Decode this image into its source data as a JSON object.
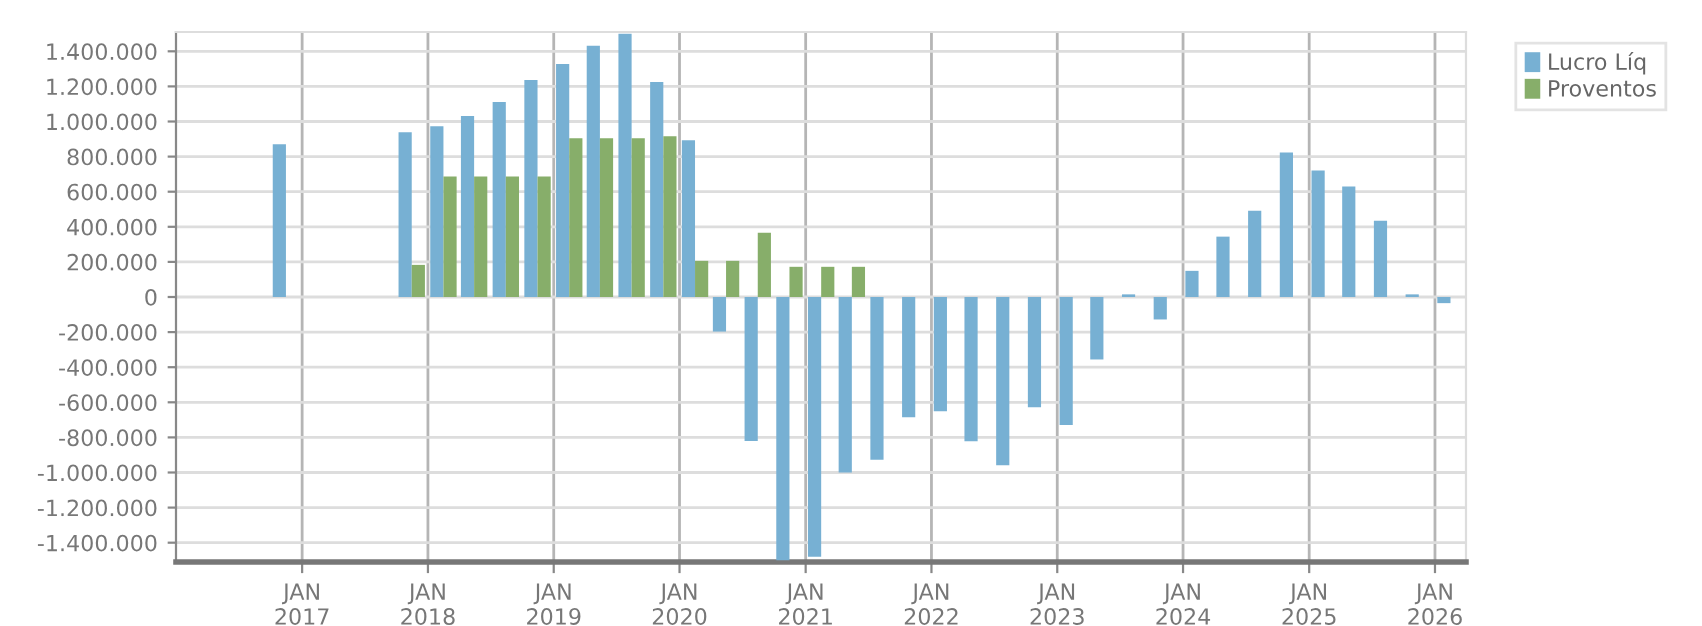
{
  "chart_data": {
    "type": "bar",
    "x": [
      "2016-11-15",
      "2017-02-15",
      "2017-05-15",
      "2017-08-15",
      "2017-11-15",
      "2018-02-15",
      "2018-05-15",
      "2018-08-15",
      "2018-11-15",
      "2019-02-15",
      "2019-05-15",
      "2019-08-15",
      "2019-11-15",
      "2020-02-15",
      "2020-05-15",
      "2020-08-15",
      "2020-11-15",
      "2021-02-15",
      "2021-05-15",
      "2021-08-15",
      "2021-11-15",
      "2022-02-15",
      "2022-05-15",
      "2022-08-15",
      "2022-11-15",
      "2023-02-15",
      "2023-05-15",
      "2023-08-15",
      "2023-11-15",
      "2024-02-15",
      "2024-05-15",
      "2024-08-15",
      "2024-11-15",
      "2025-02-15",
      "2025-05-15",
      "2025-08-15",
      "2025-11-15",
      "2026-02-15"
    ],
    "series": [
      {
        "name": "Lucro Líq",
        "color": "#77b0d3",
        "values": [
          870000,
          null,
          null,
          null,
          939000,
          973000,
          1031000,
          1111000,
          1237000,
          1328000,
          1431000,
          1500000,
          1225000,
          893000,
          -197000,
          -820000,
          -1500000,
          -1480000,
          -1000000,
          -927000,
          -685000,
          -651000,
          -822000,
          -958000,
          -628000,
          -730000,
          -356000,
          15000,
          -128000,
          149000,
          344000,
          492000,
          824000,
          721000,
          630000,
          435000,
          15000,
          -35000
        ]
      },
      {
        "name": "Proventos",
        "color": "#87ae6a",
        "values": [
          0,
          null,
          null,
          null,
          183000,
          687000,
          687000,
          687000,
          687000,
          905000,
          905000,
          905000,
          916000,
          206000,
          206000,
          366000,
          172000,
          172000,
          172000,
          0,
          0,
          0,
          0,
          0,
          0,
          0,
          0,
          0,
          0,
          0,
          0,
          0,
          0,
          0,
          0,
          0,
          0,
          0
        ]
      }
    ],
    "xlim": [
      "2016-01-01",
      "2026-04-01"
    ],
    "xticks": [
      {
        "value": "2017-01-01",
        "label": "JAN\n2017"
      },
      {
        "value": "2018-01-01",
        "label": "JAN\n2018"
      },
      {
        "value": "2019-01-01",
        "label": "JAN\n2019"
      },
      {
        "value": "2020-01-01",
        "label": "JAN\n2020"
      },
      {
        "value": "2021-01-01",
        "label": "JAN\n2021"
      },
      {
        "value": "2022-01-01",
        "label": "JAN\n2022"
      },
      {
        "value": "2023-01-01",
        "label": "JAN\n2023"
      },
      {
        "value": "2024-01-01",
        "label": "JAN\n2024"
      },
      {
        "value": "2025-01-01",
        "label": "JAN\n2025"
      },
      {
        "value": "2026-01-01",
        "label": "JAN\n2026"
      }
    ],
    "ylim": [
      -1510000,
      1510000
    ],
    "yticks": [
      {
        "value": -1400000,
        "label": "-1.400.000"
      },
      {
        "value": -1200000,
        "label": "-1.200.000"
      },
      {
        "value": -1000000,
        "label": "-1.000.000"
      },
      {
        "value": -800000,
        "label": "-800.000"
      },
      {
        "value": -600000,
        "label": "-600.000"
      },
      {
        "value": -400000,
        "label": "-400.000"
      },
      {
        "value": -200000,
        "label": "-200.000"
      },
      {
        "value": 0,
        "label": "0"
      },
      {
        "value": 200000,
        "label": "200.000"
      },
      {
        "value": 400000,
        "label": "400.000"
      },
      {
        "value": 600000,
        "label": "600.000"
      },
      {
        "value": 800000,
        "label": "800.000"
      },
      {
        "value": 1000000,
        "label": "1.000.000"
      },
      {
        "value": 1200000,
        "label": "1.200.000"
      },
      {
        "value": 1400000,
        "label": "1.400.000"
      }
    ],
    "grid": true,
    "legend": "top right"
  }
}
